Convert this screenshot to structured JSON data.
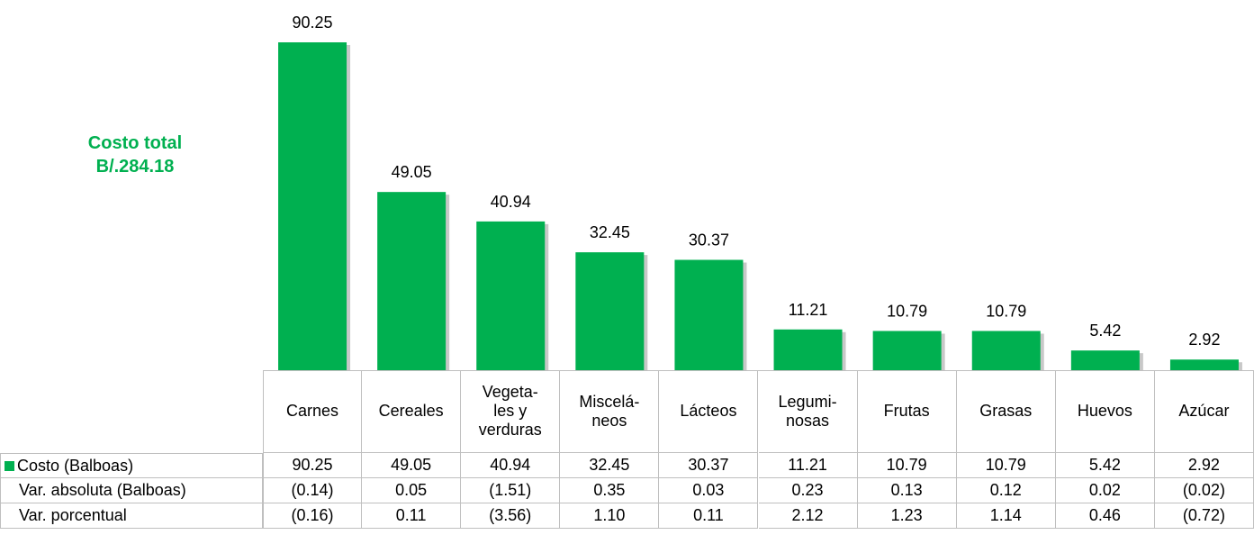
{
  "chart_data": {
    "type": "bar",
    "annotation": "Costo total\nB/.284.18",
    "categories": [
      "Carnes",
      "Cereales",
      "Vegeta-\nles y\nverduras",
      "Miscelá-\nneos",
      "Lácteos",
      "Legumi-\nnosas",
      "Frutas",
      "Grasas",
      "Huevos",
      "Azúcar"
    ],
    "series": [
      {
        "name": "Costo (Balboas)",
        "color": "#00b050",
        "values": [
          90.25,
          49.05,
          40.94,
          32.45,
          30.37,
          11.21,
          10.79,
          10.79,
          5.42,
          2.92
        ]
      }
    ],
    "table_rows": [
      {
        "name": "Var. absoluta (Balboas)",
        "values": [
          -0.14,
          0.05,
          -1.51,
          0.35,
          0.03,
          0.23,
          0.13,
          0.12,
          0.02,
          -0.02
        ],
        "value_labels": [
          "(0.14)",
          "0.05",
          "(1.51)",
          "0.35",
          "0.03",
          "0.23",
          "0.13",
          "0.12",
          "0.02",
          "(0.02)"
        ]
      },
      {
        "name": "Var. porcentual",
        "values": [
          -0.16,
          0.11,
          -3.56,
          1.1,
          0.11,
          2.12,
          1.23,
          1.14,
          0.46,
          -0.72
        ],
        "value_labels": [
          "(0.16)",
          "0.11",
          "(3.56)",
          "1.10",
          "0.11",
          "2.12",
          "1.23",
          "1.14",
          "0.46",
          "(0.72)"
        ]
      }
    ]
  }
}
